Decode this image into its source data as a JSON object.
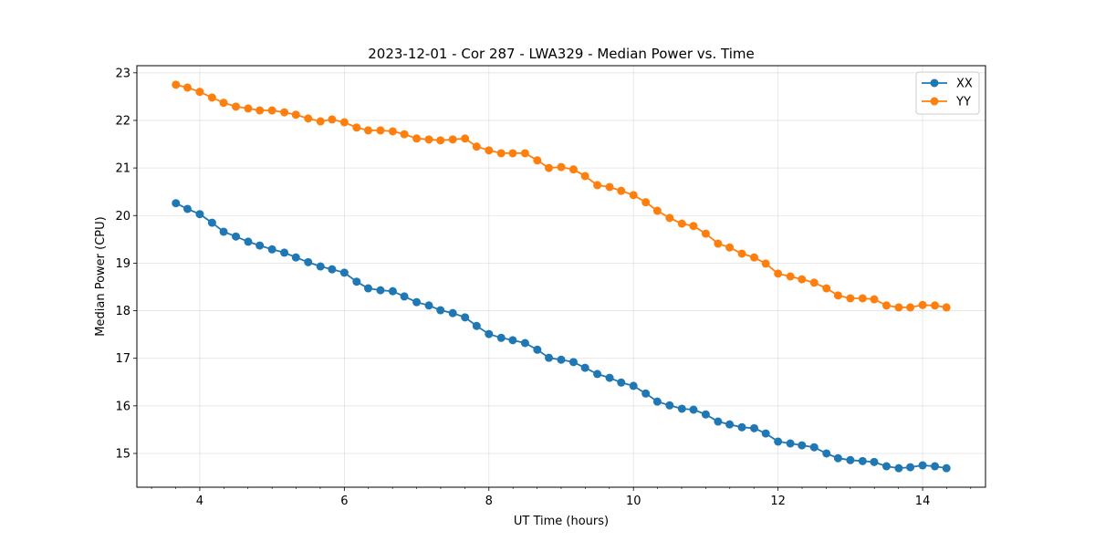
{
  "chart_data": {
    "type": "line",
    "title": "2023-12-01 - Cor 287 - LWA329 - Median Power vs. Time",
    "xlabel": "UT Time (hours)",
    "ylabel": "Median Power (CPU)",
    "xlim": [
      3.13,
      14.87
    ],
    "ylim": [
      14.29,
      23.15
    ],
    "xticks": [
      4,
      6,
      8,
      10,
      12,
      14
    ],
    "yticks": [
      15,
      16,
      17,
      18,
      19,
      20,
      21,
      22,
      23
    ],
    "xminor_step": 0.3333,
    "grid": true,
    "legend_position": "top-right",
    "x": [
      3.67,
      3.83,
      4.0,
      4.17,
      4.33,
      4.5,
      4.67,
      4.83,
      5.0,
      5.17,
      5.33,
      5.5,
      5.67,
      5.83,
      6.0,
      6.17,
      6.33,
      6.5,
      6.67,
      6.83,
      7.0,
      7.17,
      7.33,
      7.5,
      7.67,
      7.83,
      8.0,
      8.17,
      8.33,
      8.5,
      8.67,
      8.83,
      9.0,
      9.17,
      9.33,
      9.5,
      9.67,
      9.83,
      10.0,
      10.17,
      10.33,
      10.5,
      10.67,
      10.83,
      11.0,
      11.17,
      11.33,
      11.5,
      11.67,
      11.83,
      12.0,
      12.17,
      12.33,
      12.5,
      12.67,
      12.83,
      13.0,
      13.17,
      13.33,
      13.5,
      13.67,
      13.83,
      14.0,
      14.17,
      14.33
    ],
    "series": [
      {
        "name": "XX",
        "color": "#1f77b4",
        "values": [
          20.26,
          20.14,
          20.03,
          19.85,
          19.66,
          19.56,
          19.45,
          19.37,
          19.29,
          19.22,
          19.12,
          19.02,
          18.93,
          18.87,
          18.8,
          18.61,
          18.47,
          18.43,
          18.41,
          18.3,
          18.18,
          18.11,
          18.01,
          17.95,
          17.86,
          17.68,
          17.51,
          17.43,
          17.38,
          17.32,
          17.18,
          17.01,
          16.97,
          16.92,
          16.8,
          16.67,
          16.59,
          16.49,
          16.42,
          16.26,
          16.09,
          16.01,
          15.94,
          15.92,
          15.82,
          15.67,
          15.61,
          15.55,
          15.53,
          15.42,
          15.25,
          15.21,
          15.17,
          15.13,
          15.0,
          14.9,
          14.86,
          14.84,
          14.82,
          14.73,
          14.69,
          14.71,
          14.75,
          14.73,
          14.69
        ]
      },
      {
        "name": "YY",
        "color": "#ff7f0e",
        "values": [
          22.75,
          22.69,
          22.6,
          22.48,
          22.37,
          22.29,
          22.25,
          22.21,
          22.21,
          22.17,
          22.12,
          22.04,
          21.98,
          22.02,
          21.96,
          21.85,
          21.79,
          21.79,
          21.77,
          21.71,
          21.62,
          21.6,
          21.58,
          21.6,
          21.62,
          21.45,
          21.37,
          21.31,
          21.31,
          21.31,
          21.16,
          21.0,
          21.02,
          20.97,
          20.83,
          20.64,
          20.6,
          20.52,
          20.43,
          20.28,
          20.1,
          19.95,
          19.83,
          19.78,
          19.62,
          19.41,
          19.33,
          19.2,
          19.12,
          18.99,
          18.78,
          18.72,
          18.66,
          18.59,
          18.47,
          18.32,
          18.26,
          18.26,
          18.24,
          18.11,
          18.07,
          18.07,
          18.12,
          18.11,
          18.07
        ]
      }
    ]
  }
}
